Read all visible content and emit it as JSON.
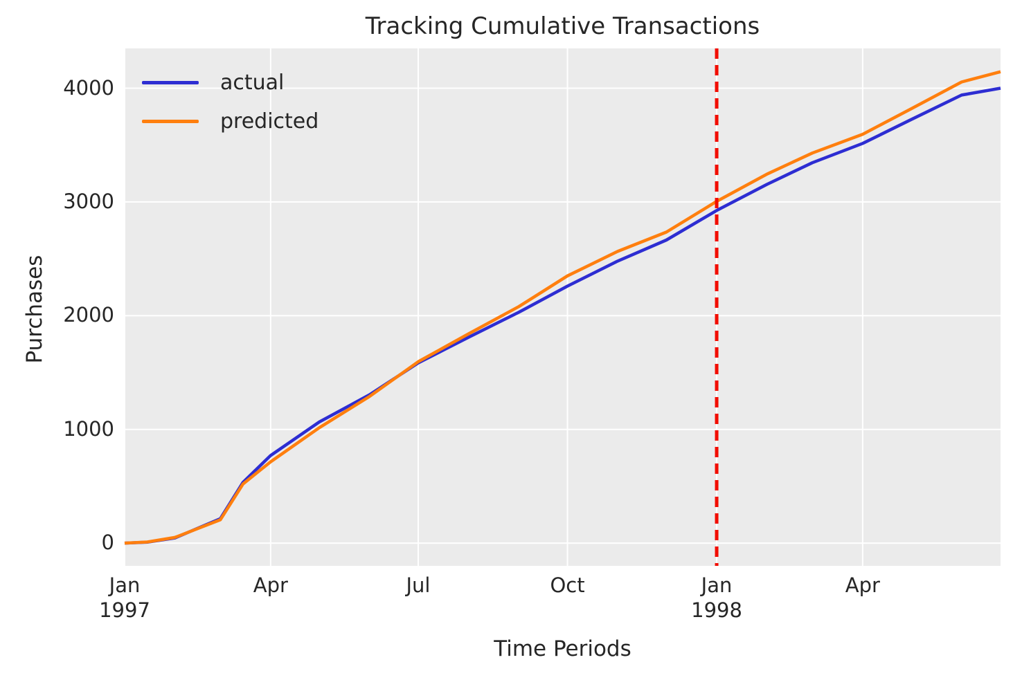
{
  "chart_data": {
    "type": "line",
    "title": "Tracking Cumulative Transactions",
    "xlabel": "Time Periods",
    "ylabel": "Purchases",
    "x_unit": "days_since_1997_01_01",
    "xlim": [
      0,
      540
    ],
    "ylim": [
      -200,
      4350
    ],
    "grid": true,
    "plot_bg_color": "#ebebeb",
    "grid_color": "#ffffff",
    "text_color": "#262626",
    "x_ticks": [
      {
        "day": 0,
        "label": "Jan",
        "sublabel": "1997"
      },
      {
        "day": 90,
        "label": "Apr",
        "sublabel": ""
      },
      {
        "day": 181,
        "label": "Jul",
        "sublabel": ""
      },
      {
        "day": 273,
        "label": "Oct",
        "sublabel": ""
      },
      {
        "day": 365,
        "label": "Jan",
        "sublabel": "1998"
      },
      {
        "day": 455,
        "label": "Apr",
        "sublabel": ""
      }
    ],
    "y_ticks": [
      0,
      1000,
      2000,
      3000,
      4000
    ],
    "series": [
      {
        "name": "actual",
        "color": "#2d2dd2",
        "x": [
          0,
          14,
          31,
          59,
          73,
          90,
          120,
          151,
          181,
          212,
          243,
          273,
          304,
          334,
          365,
          396,
          424,
          455,
          485,
          516,
          540
        ],
        "values": [
          0,
          8,
          45,
          215,
          535,
          770,
          1065,
          1305,
          1585,
          1810,
          2030,
          2260,
          2480,
          2665,
          2925,
          3155,
          3345,
          3515,
          3725,
          3940,
          4000
        ]
      },
      {
        "name": "predicted",
        "color": "#ff7f0e",
        "x": [
          0,
          14,
          31,
          59,
          73,
          90,
          120,
          151,
          181,
          212,
          243,
          273,
          304,
          334,
          365,
          396,
          424,
          455,
          485,
          516,
          540
        ],
        "values": [
          0,
          10,
          50,
          205,
          520,
          715,
          1015,
          1290,
          1595,
          1840,
          2080,
          2350,
          2565,
          2735,
          3005,
          3245,
          3430,
          3595,
          3820,
          4055,
          4145
        ]
      }
    ],
    "vline": {
      "day": 365,
      "color": "#f20d00",
      "style": "dashed"
    },
    "legend": {
      "position": "upper-left",
      "entries": [
        "actual",
        "predicted"
      ]
    }
  }
}
